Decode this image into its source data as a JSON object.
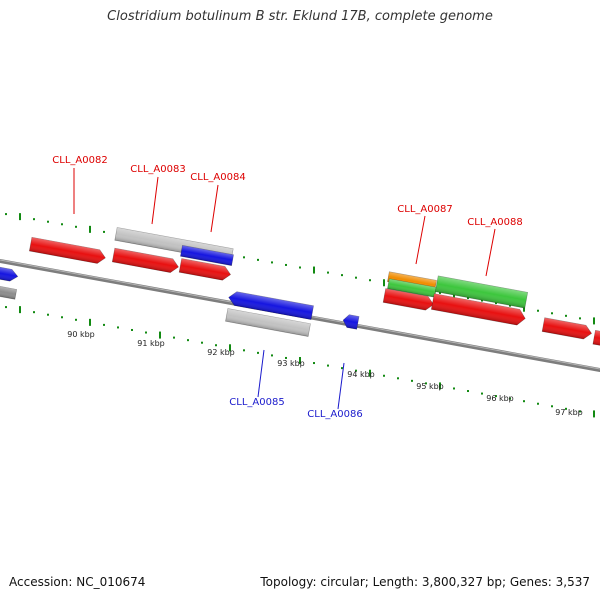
{
  "title": "Clostridium botulinum B str. Eklund 17B, complete genome",
  "footer": {
    "accession": "Accession: NC_010674",
    "topology": "Topology: circular; Length: 3,800,327 bp; Genes: 3,537"
  },
  "colors": {
    "backbone": "#7d7d7d",
    "tick": "#128a12",
    "forward_label": "#dd0000",
    "reverse_label": "#1a1acc",
    "red": "#e81010",
    "grey": "#c2c2c2",
    "blue": "#1515e0",
    "green": "#3dc63d",
    "orange": "#f08c00"
  },
  "scale_labels": [
    "90 kbp",
    "91 kbp",
    "92 kbp",
    "93 kbp",
    "94 kbp",
    "95 kbp",
    "96 kbp",
    "97 kbp"
  ],
  "gene_labels": [
    {
      "text": "CLL_A0082",
      "strand": "forward"
    },
    {
      "text": "CLL_A0083",
      "strand": "forward"
    },
    {
      "text": "CLL_A0084",
      "strand": "forward"
    },
    {
      "text": "CLL_A0085",
      "strand": "reverse"
    },
    {
      "text": "CLL_A0086",
      "strand": "reverse"
    },
    {
      "text": "CLL_A0087",
      "strand": "forward"
    },
    {
      "text": "CLL_A0088",
      "strand": "forward"
    }
  ]
}
